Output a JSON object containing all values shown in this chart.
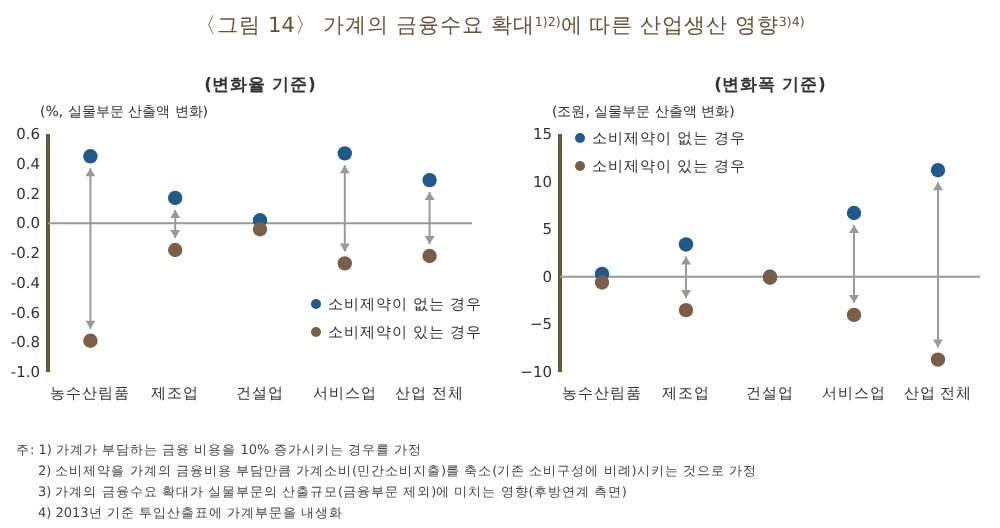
{
  "chart_data": [
    {
      "type": "scatter",
      "title": "〈그림 14〉 가계의 금융수요 확대$^{1)2)}$에 따른 산업생산 영향$^{3)4)}$",
      "subtitle": "(변화율 기준)",
      "ylabel": "(%, 실물부문 산출액 변화)",
      "categories": [
        "농수산림품",
        "제조업",
        "건설업",
        "서비스업",
        "산업 전체"
      ],
      "series": [
        {
          "name": "소비제약이 없는 경우",
          "color": "#1f5a8c",
          "values": [
            0.45,
            0.17,
            0.02,
            0.47,
            0.29
          ]
        },
        {
          "name": "소비제약이 있는 경우",
          "color": "#7a5f48",
          "values": [
            -0.79,
            -0.18,
            -0.04,
            -0.27,
            -0.22
          ]
        }
      ],
      "ylim": [
        -1.0,
        0.6
      ],
      "yticks": [
        {
          "value": -1.0,
          "label": "-1.0"
        },
        {
          "value": -0.8,
          "label": "-0.8"
        },
        {
          "value": -0.6,
          "label": "-0.6"
        },
        {
          "value": -0.4,
          "label": "-0.4"
        },
        {
          "value": -0.2,
          "label": "-0.2"
        },
        {
          "value": 0,
          "label": "0.0"
        },
        {
          "value": 0.2,
          "label": "0.2"
        },
        {
          "value": 0.4,
          "label": "0.4"
        },
        {
          "value": 0.6,
          "label": "0.6"
        }
      ],
      "ref_lines": [
        {
          "axis": "y",
          "value": 0,
          "color": "#999999"
        }
      ],
      "legend": "bottom right",
      "annotations": [
        "주: 1) 가계가 부담하는 금융 비용을 10% 증가시키는 경우를 가정",
        "2) 소비제약을 가계의 금융비용 부담만큼 가계소비(민간소비지출)를 축소(기존 소비구성에 비례)시키는 것으로 가정",
        "3) 가계의 금융수요 확대가 실물부문의 산출규모(금융부문 제외)에 미치는 영향(후방연계 측면)",
        "4) 2013년 기준 투입산출표에 가계부문을 내생화"
      ]
    },
    {
      "type": "scatter",
      "subtitle": "(변화폭 기준)",
      "ylabel": "(조원, 실물부문 산출액 변화)",
      "categories": [
        "농수산림품",
        "제조업",
        "건설업",
        "서비스업",
        "산업 전체"
      ],
      "series": [
        {
          "name": "소비제약이 없는 경우",
          "color": "#1f5a8c",
          "values": [
            0.3,
            3.4,
            0.0,
            6.7,
            11.2
          ]
        },
        {
          "name": "소비제약이 있는 경우",
          "color": "#7a5f48",
          "values": [
            -0.6,
            -3.5,
            -0.1,
            -4.0,
            -8.7
          ]
        }
      ],
      "ylim": [
        -10,
        15
      ],
      "yticks": [
        -10,
        -5,
        0,
        5,
        10,
        15
      ],
      "ref_lines": [
        {
          "axis": "y",
          "value": 0,
          "color": "#999999"
        }
      ],
      "legend": "top left"
    }
  ]
}
